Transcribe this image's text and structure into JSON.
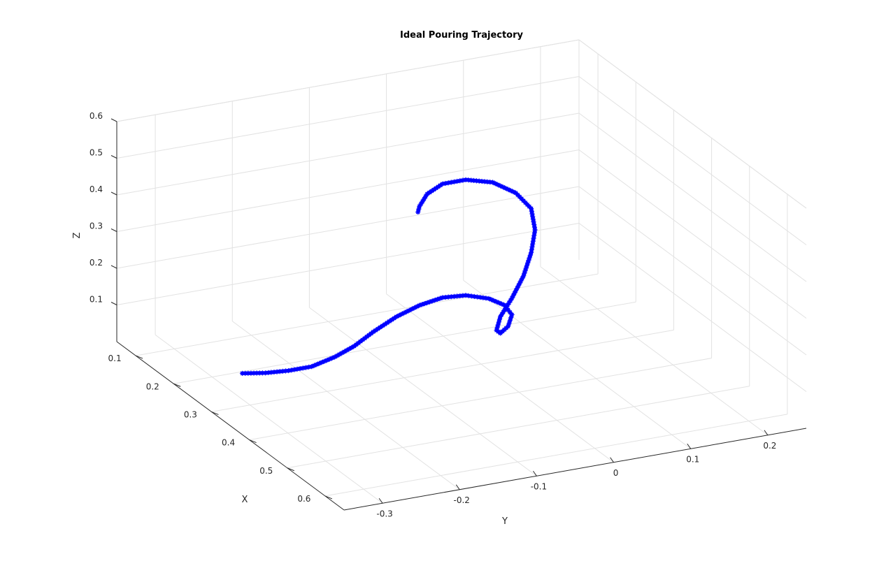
{
  "chart_data": {
    "type": "line",
    "projection": "3d",
    "title": "Ideal Pouring Trajectory",
    "xlabel": "X",
    "ylabel": "Y",
    "zlabel": "Z",
    "xlim": [
      0.05,
      0.65
    ],
    "ylim": [
      -0.35,
      0.25
    ],
    "zlim": [
      0,
      0.6
    ],
    "xticks": [
      "0.1",
      "0.2",
      "0.3",
      "0.4",
      "0.5",
      "0.6"
    ],
    "yticks": [
      "-0.3",
      "-0.2",
      "-0.1",
      "0",
      "0.1",
      "0.2"
    ],
    "zticks": [
      "0.1",
      "0.2",
      "0.3",
      "0.4",
      "0.5",
      "0.6"
    ],
    "grid": true,
    "marker": "*",
    "color": "#0000ff",
    "series": [
      {
        "points": [
          {
            "x": 0.3,
            "y": -0.31,
            "z": 0.09
          },
          {
            "x": 0.3,
            "y": -0.28,
            "z": 0.08
          },
          {
            "x": 0.3,
            "y": -0.25,
            "z": 0.075
          },
          {
            "x": 0.3,
            "y": -0.22,
            "z": 0.075
          },
          {
            "x": 0.3,
            "y": -0.19,
            "z": 0.09
          },
          {
            "x": 0.3,
            "y": -0.165,
            "z": 0.11
          },
          {
            "x": 0.3,
            "y": -0.14,
            "z": 0.14
          },
          {
            "x": 0.3,
            "y": -0.11,
            "z": 0.17
          },
          {
            "x": 0.3,
            "y": -0.08,
            "z": 0.19
          },
          {
            "x": 0.3,
            "y": -0.05,
            "z": 0.2
          },
          {
            "x": 0.3,
            "y": -0.02,
            "z": 0.195
          },
          {
            "x": 0.3,
            "y": 0.01,
            "z": 0.175
          },
          {
            "x": 0.3,
            "y": 0.03,
            "z": 0.15
          },
          {
            "x": 0.3,
            "y": 0.04,
            "z": 0.12
          },
          {
            "x": 0.3,
            "y": 0.035,
            "z": 0.09
          },
          {
            "x": 0.3,
            "y": 0.025,
            "z": 0.075
          },
          {
            "x": 0.3,
            "y": 0.02,
            "z": 0.085
          },
          {
            "x": 0.3,
            "y": 0.025,
            "z": 0.12
          },
          {
            "x": 0.3,
            "y": 0.04,
            "z": 0.165
          },
          {
            "x": 0.3,
            "y": 0.055,
            "z": 0.22
          },
          {
            "x": 0.3,
            "y": 0.065,
            "z": 0.28
          },
          {
            "x": 0.3,
            "y": 0.07,
            "z": 0.34
          },
          {
            "x": 0.3,
            "y": 0.065,
            "z": 0.4
          },
          {
            "x": 0.3,
            "y": 0.045,
            "z": 0.45
          },
          {
            "x": 0.3,
            "y": 0.015,
            "z": 0.49
          },
          {
            "x": 0.3,
            "y": -0.02,
            "z": 0.51
          },
          {
            "x": 0.3,
            "y": -0.05,
            "z": 0.51
          },
          {
            "x": 0.3,
            "y": -0.07,
            "z": 0.49
          },
          {
            "x": 0.3,
            "y": -0.08,
            "z": 0.46
          },
          {
            "x": 0.3,
            "y": -0.082,
            "z": 0.445
          }
        ]
      }
    ]
  }
}
